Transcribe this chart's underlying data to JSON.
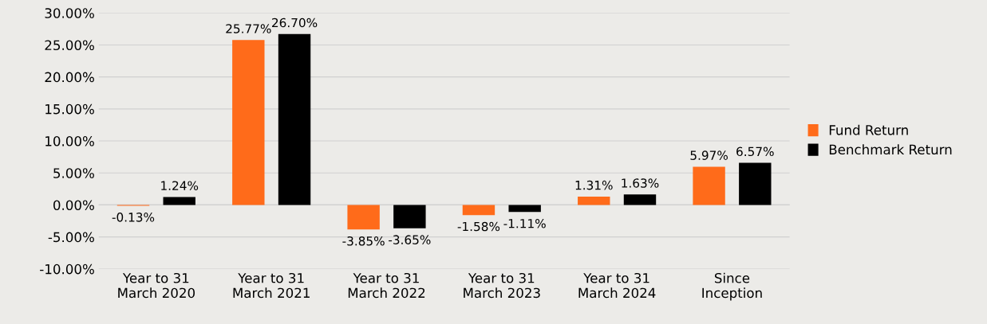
{
  "chart_data": {
    "type": "bar",
    "categories": [
      "Year to 31\nMarch 2020",
      "Year to 31\nMarch 2021",
      "Year to 31\nMarch 2022",
      "Year to 31\nMarch 2023",
      "Year to 31\nMarch 2024",
      "Since\nInception"
    ],
    "series": [
      {
        "name": "Fund Return",
        "color": "#ff6b1a",
        "values": [
          -0.13,
          25.77,
          -3.85,
          -1.58,
          1.31,
          5.97
        ],
        "value_labels": [
          "-0.13%",
          "25.77%",
          "-3.85%",
          "-1.58%",
          "1.31%",
          "5.97%"
        ]
      },
      {
        "name": "Benchmark Return",
        "color": "#000000",
        "values": [
          1.24,
          26.7,
          -3.65,
          -1.11,
          1.63,
          6.57
        ],
        "value_labels": [
          "1.24%",
          "26.70%",
          "-3.65%",
          "-1.11%",
          "1.63%",
          "6.57%"
        ]
      }
    ],
    "ylim": [
      -10,
      30
    ],
    "yticks": [
      {
        "value": -10,
        "label": "-10.00%"
      },
      {
        "value": -5,
        "label": "-5.00%"
      },
      {
        "value": 0,
        "label": "0.00%"
      },
      {
        "value": 5,
        "label": "5.00%"
      },
      {
        "value": 10,
        "label": "10.00%"
      },
      {
        "value": 15,
        "label": "15.00%"
      },
      {
        "value": 20,
        "label": "20.00%"
      },
      {
        "value": 25,
        "label": "25.00%"
      },
      {
        "value": 30,
        "label": "30.00%"
      }
    ],
    "grid": "y",
    "legend": "right"
  }
}
